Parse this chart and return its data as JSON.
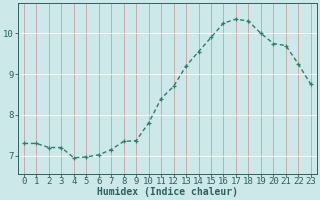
{
  "x": [
    0,
    1,
    2,
    3,
    4,
    5,
    6,
    7,
    8,
    9,
    10,
    11,
    12,
    13,
    14,
    15,
    16,
    17,
    18,
    19,
    20,
    21,
    22,
    23
  ],
  "y": [
    7.3,
    7.3,
    7.2,
    7.2,
    6.95,
    6.97,
    7.02,
    7.15,
    7.35,
    7.37,
    7.8,
    8.4,
    8.7,
    9.2,
    9.55,
    9.9,
    10.25,
    10.35,
    10.3,
    10.0,
    9.75,
    9.7,
    9.25,
    8.75
  ],
  "line_color": "#2e7d6e",
  "marker": "+",
  "marker_size": 3.5,
  "bg_color": "#cce8e8",
  "vgrid_color": "#c8a0a0",
  "hgrid_color": "#ffffff",
  "axis_color": "#2e6060",
  "tick_color": "#2e6060",
  "xlabel": "Humidex (Indice chaleur)",
  "xlabel_fontsize": 7,
  "yticks": [
    7,
    8,
    9,
    10
  ],
  "xticks": [
    0,
    1,
    2,
    3,
    4,
    5,
    6,
    7,
    8,
    9,
    10,
    11,
    12,
    13,
    14,
    15,
    16,
    17,
    18,
    19,
    20,
    21,
    22,
    23
  ],
  "ylim": [
    6.55,
    10.75
  ],
  "xlim": [
    -0.5,
    23.5
  ],
  "tick_fontsize": 6.5,
  "line_lw": 1.0,
  "line_style": "--",
  "line_dashes": [
    3,
    2
  ]
}
